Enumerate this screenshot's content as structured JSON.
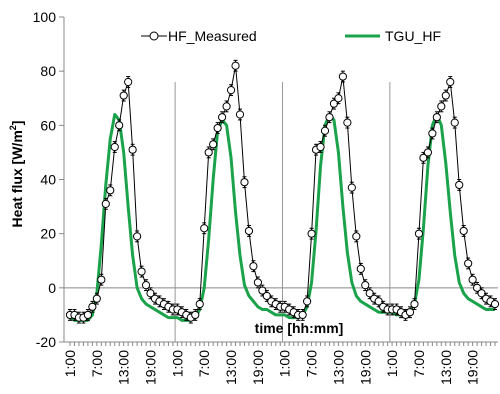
{
  "chart_data": {
    "type": "line",
    "title": "",
    "ylabel": "Heat flux [W/m²]",
    "ylabel_parts": {
      "base": "Heat flux [W/m",
      "sup": "2",
      "close": "]"
    },
    "xlabel": "time [hh:mm]",
    "ylim": [
      -20,
      100
    ],
    "yticks": [
      -20,
      0,
      20,
      40,
      60,
      80,
      100
    ],
    "xtick_labels": [
      "1:00",
      "7:00",
      "13:00",
      "19:00",
      "1:00",
      "7:00",
      "13:00",
      "19:00",
      "1:00",
      "7:00",
      "13:00",
      "19:00",
      "1:00",
      "7:00",
      "13:00",
      "19:00"
    ],
    "legend_position": "top",
    "day_separators_after_hours": [
      24,
      48,
      72
    ],
    "x_unit": "hour (4 consecutive days, hourly samples starting 1:00)",
    "series": [
      {
        "name": "HF_Measured",
        "style": "line-with-open-circles-and-error-bars",
        "color": "#000000",
        "error": 2,
        "values": [
          -10,
          -10,
          -11,
          -11,
          -10,
          -7,
          -4,
          3,
          31,
          36,
          52,
          60,
          71,
          76,
          51,
          19,
          6,
          1,
          -2,
          -4,
          -5,
          -6,
          -7,
          -8,
          -8,
          -9,
          -10,
          -11,
          -10,
          -6,
          22,
          50,
          53,
          59,
          63,
          67,
          73,
          82,
          64,
          39,
          21,
          8,
          2,
          -1,
          -3,
          -5,
          -6,
          -7,
          -7,
          -8,
          -9,
          -10,
          -10,
          -5,
          20,
          51,
          52,
          58,
          63,
          68,
          70,
          78,
          61,
          37,
          19,
          7,
          1,
          -2,
          -4,
          -5,
          -7,
          -8,
          -8,
          -8,
          -9,
          -10,
          -9,
          -6,
          20,
          48,
          50,
          57,
          63,
          67,
          71,
          76,
          61,
          38,
          21,
          9,
          3,
          0,
          -2,
          -4,
          -5,
          -6
        ]
      },
      {
        "name": "TGU_HF",
        "style": "line",
        "color": "#1aa34a",
        "values": [
          -11,
          -12,
          -12,
          -12,
          -12,
          -10,
          -2,
          16,
          38,
          55,
          64,
          62,
          50,
          30,
          12,
          0,
          -4,
          -6,
          -7,
          -8,
          -9,
          -10,
          -11,
          -11,
          -11,
          -12,
          -12,
          -12,
          -11,
          -8,
          0,
          18,
          40,
          58,
          62,
          60,
          48,
          28,
          12,
          1,
          -3,
          -5,
          -7,
          -8,
          -8,
          -9,
          -10,
          -10,
          -10,
          -11,
          -11,
          -11,
          -10,
          -7,
          2,
          21,
          45,
          60,
          64,
          62,
          50,
          30,
          13,
          2,
          -3,
          -5,
          -6,
          -7,
          -8,
          -9,
          -9,
          -9,
          -9,
          -10,
          -10,
          -10,
          -9,
          -6,
          3,
          22,
          45,
          60,
          64,
          60,
          46,
          28,
          12,
          2,
          -2,
          -4,
          -5,
          -6,
          -7,
          -8,
          -8,
          -8
        ]
      }
    ]
  }
}
